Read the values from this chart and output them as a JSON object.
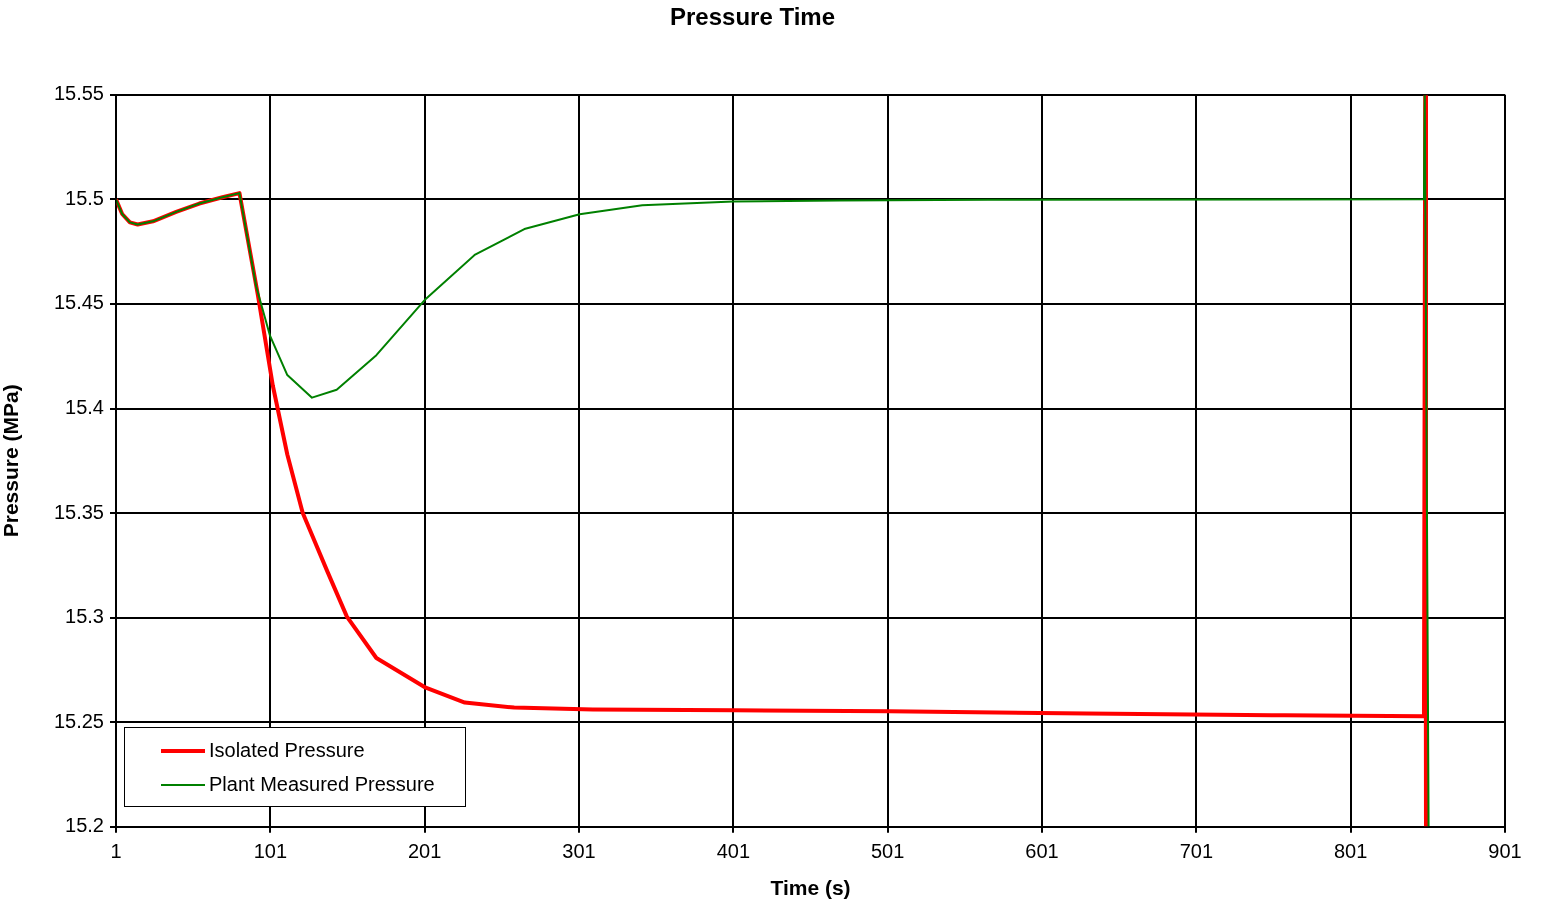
{
  "chart_data": {
    "type": "line",
    "title": "Pressure Time",
    "xlabel": "Time (s)",
    "ylabel": "Pressure (MPa)",
    "xlim": [
      1,
      901
    ],
    "xticks": [
      1,
      101,
      201,
      301,
      401,
      501,
      601,
      701,
      801,
      901
    ],
    "ylim": [
      15.2,
      15.55
    ],
    "yticks": [
      15.2,
      15.25,
      15.3,
      15.35,
      15.4,
      15.45,
      15.5,
      15.55
    ],
    "grid": true,
    "legend": "bottom left",
    "marker": "none",
    "line_style": "solid",
    "series": [
      {
        "name": "Isolated Pressure",
        "color": "#ff0000",
        "x": [
          1,
          5,
          10,
          15,
          25,
          40,
          55,
          70,
          81,
          93,
          102.6,
          112,
          122,
          138,
          150.6,
          169.7,
          201.7,
          227,
          259,
          310,
          401,
          502,
          630,
          758,
          848.5,
          849.3,
          849.8
        ],
        "values": [
          15.5,
          15.493,
          15.489,
          15.488,
          15.4895,
          15.494,
          15.498,
          15.501,
          15.503,
          15.454,
          15.411,
          15.378,
          15.35,
          15.322,
          15.3005,
          15.2807,
          15.2665,
          15.2594,
          15.257,
          15.2561,
          15.2557,
          15.2552,
          15.2542,
          15.2533,
          15.2528,
          15.55,
          15.2
        ]
      },
      {
        "name": "Plant Measured Pressure",
        "color": "#008000",
        "x": [
          1,
          5,
          10,
          15,
          25,
          40,
          55,
          70,
          81,
          91.8,
          100.7,
          112,
          128,
          144,
          169.7,
          201.7,
          233.7,
          265.6,
          301.4,
          342,
          401,
          470,
          566,
          848.5,
          849,
          851.5
        ],
        "values": [
          15.5,
          15.493,
          15.489,
          15.488,
          15.4895,
          15.494,
          15.498,
          15.501,
          15.503,
          15.4585,
          15.435,
          15.416,
          15.4052,
          15.409,
          15.4255,
          15.4524,
          15.4736,
          15.4858,
          15.4929,
          15.4972,
          15.499,
          15.4995,
          15.4998,
          15.5,
          15.55,
          15.2
        ]
      }
    ]
  }
}
